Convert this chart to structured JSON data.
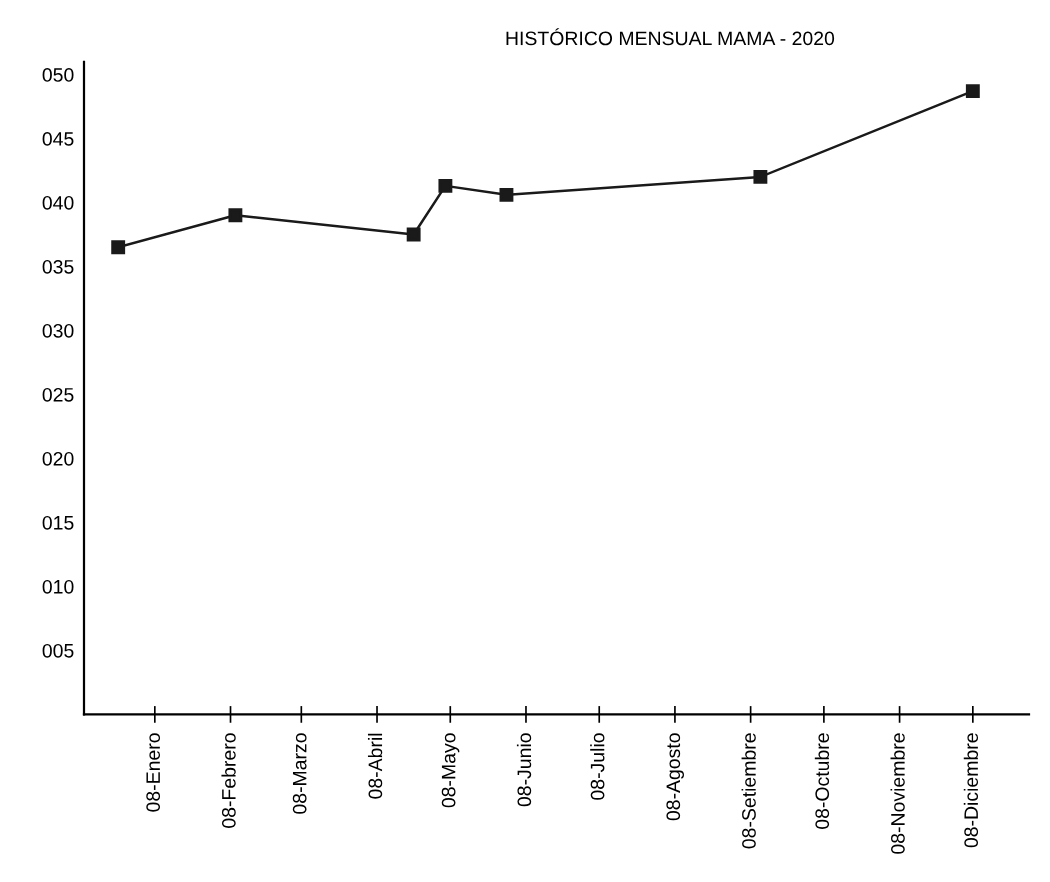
{
  "chart_data": {
    "type": "line",
    "title": "HISTÓRICO MENSUAL MAMA - 2020",
    "x": [
      "2019-12-24",
      "2020-02-10",
      "2020-04-23",
      "2020-05-06",
      "2020-05-31",
      "2020-09-12",
      "2020-12-08"
    ],
    "series": [
      {
        "color": "#1a1a1a",
        "values": [
          36.5,
          39.0,
          37.5,
          41.3,
          40.6,
          42.0,
          48.7
        ]
      }
    ],
    "xlim": [
      "2019-12-10",
      "2020-12-31"
    ],
    "xticks": [
      {
        "value": "2020-01-08",
        "label": "08-Enero"
      },
      {
        "value": "2020-02-08",
        "label": "08-Febrero"
      },
      {
        "value": "2020-03-08",
        "label": "08-Marzo"
      },
      {
        "value": "2020-04-08",
        "label": "08-Abril"
      },
      {
        "value": "2020-05-08",
        "label": "08-Mayo"
      },
      {
        "value": "2020-06-08",
        "label": "08-Junio"
      },
      {
        "value": "2020-07-08",
        "label": "08-Julio"
      },
      {
        "value": "2020-08-08",
        "label": "08-Agosto"
      },
      {
        "value": "2020-09-08",
        "label": "08-Setiembre"
      },
      {
        "value": "2020-10-08",
        "label": "08-Octubre"
      },
      {
        "value": "2020-11-08",
        "label": "08-Noviembre"
      },
      {
        "value": "2020-12-08",
        "label": "08-Diciembre"
      }
    ],
    "ylim": [
      0,
      51
    ],
    "yticks": [
      {
        "value": 5,
        "label": "005"
      },
      {
        "value": 10,
        "label": "010"
      },
      {
        "value": 15,
        "label": "015"
      },
      {
        "value": 20,
        "label": "020"
      },
      {
        "value": 25,
        "label": "025"
      },
      {
        "value": 30,
        "label": "030"
      },
      {
        "value": 35,
        "label": "035"
      },
      {
        "value": 40,
        "label": "040"
      },
      {
        "value": 45,
        "label": "045"
      },
      {
        "value": 50,
        "label": "050"
      }
    ],
    "marker": "square",
    "line_style": "solid",
    "grid": false,
    "legend": false
  }
}
